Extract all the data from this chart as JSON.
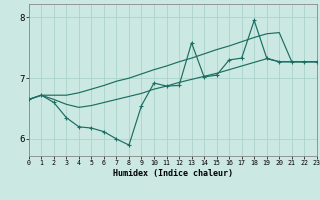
{
  "xlabel": "Humidex (Indice chaleur)",
  "xlim": [
    0,
    23
  ],
  "ylim": [
    5.72,
    8.22
  ],
  "yticks": [
    6,
    7,
    8
  ],
  "xticks": [
    0,
    1,
    2,
    3,
    4,
    5,
    6,
    7,
    8,
    9,
    10,
    11,
    12,
    13,
    14,
    15,
    16,
    17,
    18,
    19,
    20,
    21,
    22,
    23
  ],
  "bg_color": "#cce8e2",
  "grid_color": "#aad4cc",
  "line_color": "#1a6e62",
  "s1_x": [
    0,
    1,
    2,
    3,
    4,
    5,
    6,
    7,
    8,
    9,
    10,
    11,
    12,
    13,
    14,
    15,
    16,
    17,
    18,
    19,
    20,
    21,
    22,
    23
  ],
  "s1_y": [
    6.65,
    6.72,
    6.6,
    6.35,
    6.2,
    6.18,
    6.12,
    6.0,
    5.9,
    6.55,
    6.92,
    6.87,
    6.88,
    7.58,
    7.02,
    7.05,
    7.3,
    7.33,
    7.95,
    7.33,
    7.27,
    7.27,
    7.27,
    7.27
  ],
  "s2_x": [
    0,
    1,
    2,
    3,
    4,
    5,
    6,
    7,
    8,
    9,
    10,
    11,
    12,
    13,
    14,
    15,
    16,
    17,
    18,
    19,
    20,
    21,
    22,
    23
  ],
  "s2_y": [
    6.65,
    6.72,
    6.72,
    6.72,
    6.76,
    6.82,
    6.88,
    6.95,
    7.0,
    7.07,
    7.14,
    7.2,
    7.27,
    7.33,
    7.4,
    7.47,
    7.53,
    7.6,
    7.67,
    7.73,
    7.75,
    7.27,
    7.27,
    7.27
  ],
  "s3_x": [
    0,
    1,
    2,
    3,
    4,
    5,
    6,
    7,
    8,
    9,
    10,
    11,
    12,
    13,
    14,
    15,
    16,
    17,
    18,
    19,
    20,
    21,
    22,
    23
  ],
  "s3_y": [
    6.65,
    6.72,
    6.65,
    6.57,
    6.52,
    6.55,
    6.6,
    6.65,
    6.7,
    6.75,
    6.82,
    6.87,
    6.93,
    6.98,
    7.03,
    7.08,
    7.14,
    7.2,
    7.26,
    7.32,
    7.27,
    7.27,
    7.27,
    7.27
  ]
}
